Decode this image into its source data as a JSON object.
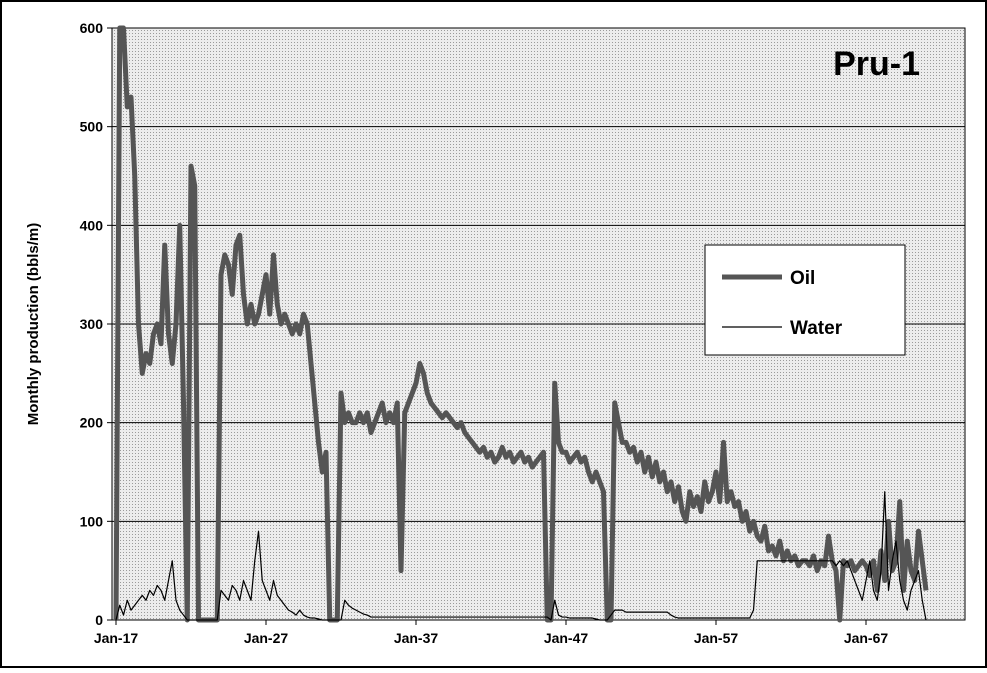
{
  "chart_data": {
    "type": "line",
    "title": "Pru-1",
    "y_label": "Monthly production (bbls/m)",
    "x": [
      "Jan-17",
      "Apr-17",
      "Jul-17",
      "Oct-17",
      "Jan-18",
      "Apr-18",
      "Jul-18",
      "Oct-18",
      "Jan-19",
      "Apr-19",
      "Jul-19",
      "Oct-19",
      "Jan-20",
      "Apr-20",
      "Jul-20",
      "Oct-20",
      "Jan-21",
      "Apr-21",
      "Jul-21",
      "Oct-21",
      "Jan-22",
      "Apr-22",
      "Jul-22",
      "Oct-22",
      "Jan-23",
      "Apr-23",
      "Jul-23",
      "Oct-23",
      "Jan-24",
      "Apr-24",
      "Jul-24",
      "Oct-24",
      "Jan-25",
      "Apr-25",
      "Jul-25",
      "Oct-25",
      "Jan-26",
      "Apr-26",
      "Jul-26",
      "Oct-26",
      "Jan-27",
      "Apr-27",
      "Jul-27",
      "Oct-27",
      "Jan-28",
      "Apr-28",
      "Jul-28",
      "Oct-28",
      "Jan-29",
      "Apr-29",
      "Jul-29",
      "Oct-29",
      "Jan-30",
      "Apr-30",
      "Jul-30",
      "Oct-30",
      "Jan-31",
      "Apr-31",
      "Jul-31",
      "Oct-31",
      "Jan-32",
      "Apr-32",
      "Jul-32",
      "Oct-32",
      "Jan-33",
      "Apr-33",
      "Jul-33",
      "Oct-33",
      "Jan-34",
      "Apr-34",
      "Jul-34",
      "Oct-34",
      "Jan-35",
      "Apr-35",
      "Jul-35",
      "Oct-35",
      "Jan-36",
      "Apr-36",
      "Jul-36",
      "Oct-36",
      "Jan-37",
      "Apr-37",
      "Jul-37",
      "Oct-37",
      "Jan-38",
      "Apr-38",
      "Jul-38",
      "Oct-38",
      "Jan-39",
      "Apr-39",
      "Jul-39",
      "Oct-39",
      "Jan-40",
      "Apr-40",
      "Jul-40",
      "Oct-40",
      "Jan-41",
      "Apr-41",
      "Jul-41",
      "Oct-41",
      "Jan-42",
      "Apr-42",
      "Jul-42",
      "Oct-42",
      "Jan-43",
      "Apr-43",
      "Jul-43",
      "Oct-43",
      "Jan-44",
      "Apr-44",
      "Jul-44",
      "Oct-44",
      "Jan-45",
      "Apr-45",
      "Jul-45",
      "Oct-45",
      "Jan-46",
      "Apr-46",
      "Jul-46",
      "Oct-46",
      "Jan-47",
      "Apr-47",
      "Jul-47",
      "Oct-47",
      "Jan-48",
      "Apr-48",
      "Jul-48",
      "Oct-48",
      "Jan-49",
      "Apr-49",
      "Jul-49",
      "Oct-49",
      "Jan-50",
      "Apr-50",
      "Jul-50",
      "Oct-50",
      "Jan-51",
      "Apr-51",
      "Jul-51",
      "Oct-51",
      "Jan-52",
      "Apr-52",
      "Jul-52",
      "Oct-52",
      "Jan-53",
      "Apr-53",
      "Jul-53",
      "Oct-53",
      "Jan-54",
      "Apr-54",
      "Jul-54",
      "Oct-54",
      "Jan-55",
      "Apr-55",
      "Jul-55",
      "Oct-55",
      "Jan-56",
      "Apr-56",
      "Jul-56",
      "Oct-56",
      "Jan-57",
      "Apr-57",
      "Jul-57",
      "Oct-57",
      "Jan-58",
      "Apr-58",
      "Jul-58",
      "Oct-58",
      "Jan-59",
      "Apr-59",
      "Jul-59",
      "Oct-59",
      "Jan-60",
      "Apr-60",
      "Jul-60",
      "Oct-60",
      "Jan-61",
      "Apr-61",
      "Jul-61",
      "Oct-61",
      "Jan-62",
      "Apr-62",
      "Jul-62",
      "Oct-62",
      "Jan-63",
      "Apr-63",
      "Jul-63",
      "Oct-63",
      "Jan-64",
      "Apr-64",
      "Jul-64",
      "Oct-64",
      "Jan-65",
      "Apr-65",
      "Jul-65",
      "Oct-65",
      "Jan-66",
      "Apr-66",
      "Jul-66",
      "Oct-66",
      "Jan-67",
      "Apr-67",
      "Jul-67",
      "Oct-67",
      "Jan-68",
      "Apr-68",
      "Jul-68",
      "Oct-68",
      "Jan-69",
      "Apr-69",
      "Jul-69",
      "Oct-69",
      "Jan-70",
      "Apr-70",
      "Jul-70",
      "Oct-70",
      "Jan-71"
    ],
    "series": [
      {
        "name": "Oil",
        "color": "#555555",
        "values": [
          0,
          600,
          600,
          520,
          530,
          450,
          300,
          250,
          270,
          260,
          290,
          300,
          280,
          380,
          290,
          260,
          300,
          400,
          220,
          0,
          460,
          440,
          0,
          0,
          0,
          0,
          0,
          0,
          350,
          370,
          360,
          330,
          380,
          390,
          330,
          300,
          320,
          300,
          310,
          330,
          350,
          310,
          370,
          320,
          300,
          310,
          300,
          290,
          300,
          290,
          310,
          300,
          260,
          220,
          180,
          150,
          170,
          0,
          0,
          0,
          230,
          200,
          210,
          200,
          200,
          210,
          200,
          210,
          190,
          200,
          210,
          220,
          200,
          210,
          200,
          220,
          50,
          210,
          220,
          230,
          240,
          260,
          250,
          230,
          220,
          215,
          210,
          205,
          210,
          205,
          200,
          195,
          200,
          190,
          185,
          180,
          175,
          170,
          175,
          165,
          170,
          160,
          165,
          175,
          165,
          170,
          160,
          165,
          170,
          160,
          165,
          155,
          160,
          165,
          170,
          0,
          0,
          240,
          180,
          170,
          170,
          160,
          165,
          170,
          160,
          165,
          150,
          140,
          150,
          140,
          130,
          0,
          0,
          220,
          200,
          180,
          180,
          170,
          175,
          160,
          170,
          150,
          165,
          145,
          160,
          140,
          150,
          130,
          140,
          120,
          135,
          110,
          100,
          130,
          115,
          125,
          110,
          140,
          120,
          130,
          150,
          120,
          180,
          120,
          130,
          115,
          120,
          100,
          110,
          90,
          100,
          85,
          80,
          95,
          70,
          75,
          65,
          80,
          60,
          70,
          60,
          65,
          55,
          60,
          60,
          55,
          65,
          50,
          60,
          55,
          85,
          60,
          50,
          0,
          60,
          55,
          60,
          50,
          55,
          60,
          55,
          45,
          60,
          30,
          70,
          40,
          100,
          50,
          60,
          120,
          30,
          80,
          50,
          40,
          90,
          60,
          30
        ]
      },
      {
        "name": "Water",
        "color": "#000000",
        "values": [
          0,
          15,
          5,
          20,
          10,
          15,
          20,
          25,
          20,
          30,
          25,
          35,
          30,
          20,
          40,
          60,
          20,
          10,
          5,
          0,
          0,
          0,
          0,
          0,
          0,
          0,
          0,
          0,
          30,
          25,
          20,
          35,
          30,
          20,
          40,
          30,
          20,
          60,
          90,
          40,
          30,
          20,
          40,
          25,
          20,
          15,
          10,
          8,
          5,
          10,
          5,
          3,
          2,
          2,
          1,
          0,
          0,
          0,
          0,
          0,
          0,
          20,
          15,
          12,
          10,
          8,
          6,
          5,
          3,
          3,
          3,
          3,
          3,
          3,
          3,
          3,
          3,
          3,
          3,
          3,
          3,
          3,
          3,
          3,
          3,
          3,
          3,
          3,
          3,
          3,
          3,
          3,
          3,
          3,
          3,
          3,
          3,
          3,
          3,
          3,
          3,
          3,
          3,
          3,
          3,
          3,
          3,
          3,
          3,
          3,
          3,
          3,
          3,
          3,
          3,
          3,
          0,
          20,
          5,
          3,
          3,
          2,
          2,
          2,
          2,
          2,
          2,
          2,
          1,
          0,
          0,
          0,
          5,
          10,
          10,
          10,
          8,
          8,
          8,
          8,
          8,
          8,
          8,
          8,
          8,
          8,
          8,
          8,
          5,
          3,
          2,
          2,
          2,
          2,
          2,
          2,
          2,
          2,
          2,
          2,
          2,
          2,
          2,
          2,
          2,
          2,
          2,
          2,
          2,
          2,
          10,
          60,
          60,
          60,
          60,
          60,
          60,
          60,
          60,
          60,
          60,
          60,
          60,
          60,
          60,
          60,
          60,
          60,
          60,
          60,
          60,
          60,
          55,
          60,
          55,
          60,
          50,
          40,
          30,
          20,
          40,
          60,
          30,
          20,
          50,
          130,
          30,
          60,
          80,
          40,
          20,
          10,
          30,
          40,
          50,
          20,
          0
        ]
      }
    ],
    "xticks": [
      "Jan-17",
      "Jan-27",
      "Jan-37",
      "Jan-47",
      "Jan-57",
      "Jan-67"
    ],
    "ylim": [
      0,
      600
    ],
    "yticks": [
      0,
      100,
      200,
      300,
      400,
      500,
      600
    ],
    "grid": true,
    "legend": "right"
  }
}
